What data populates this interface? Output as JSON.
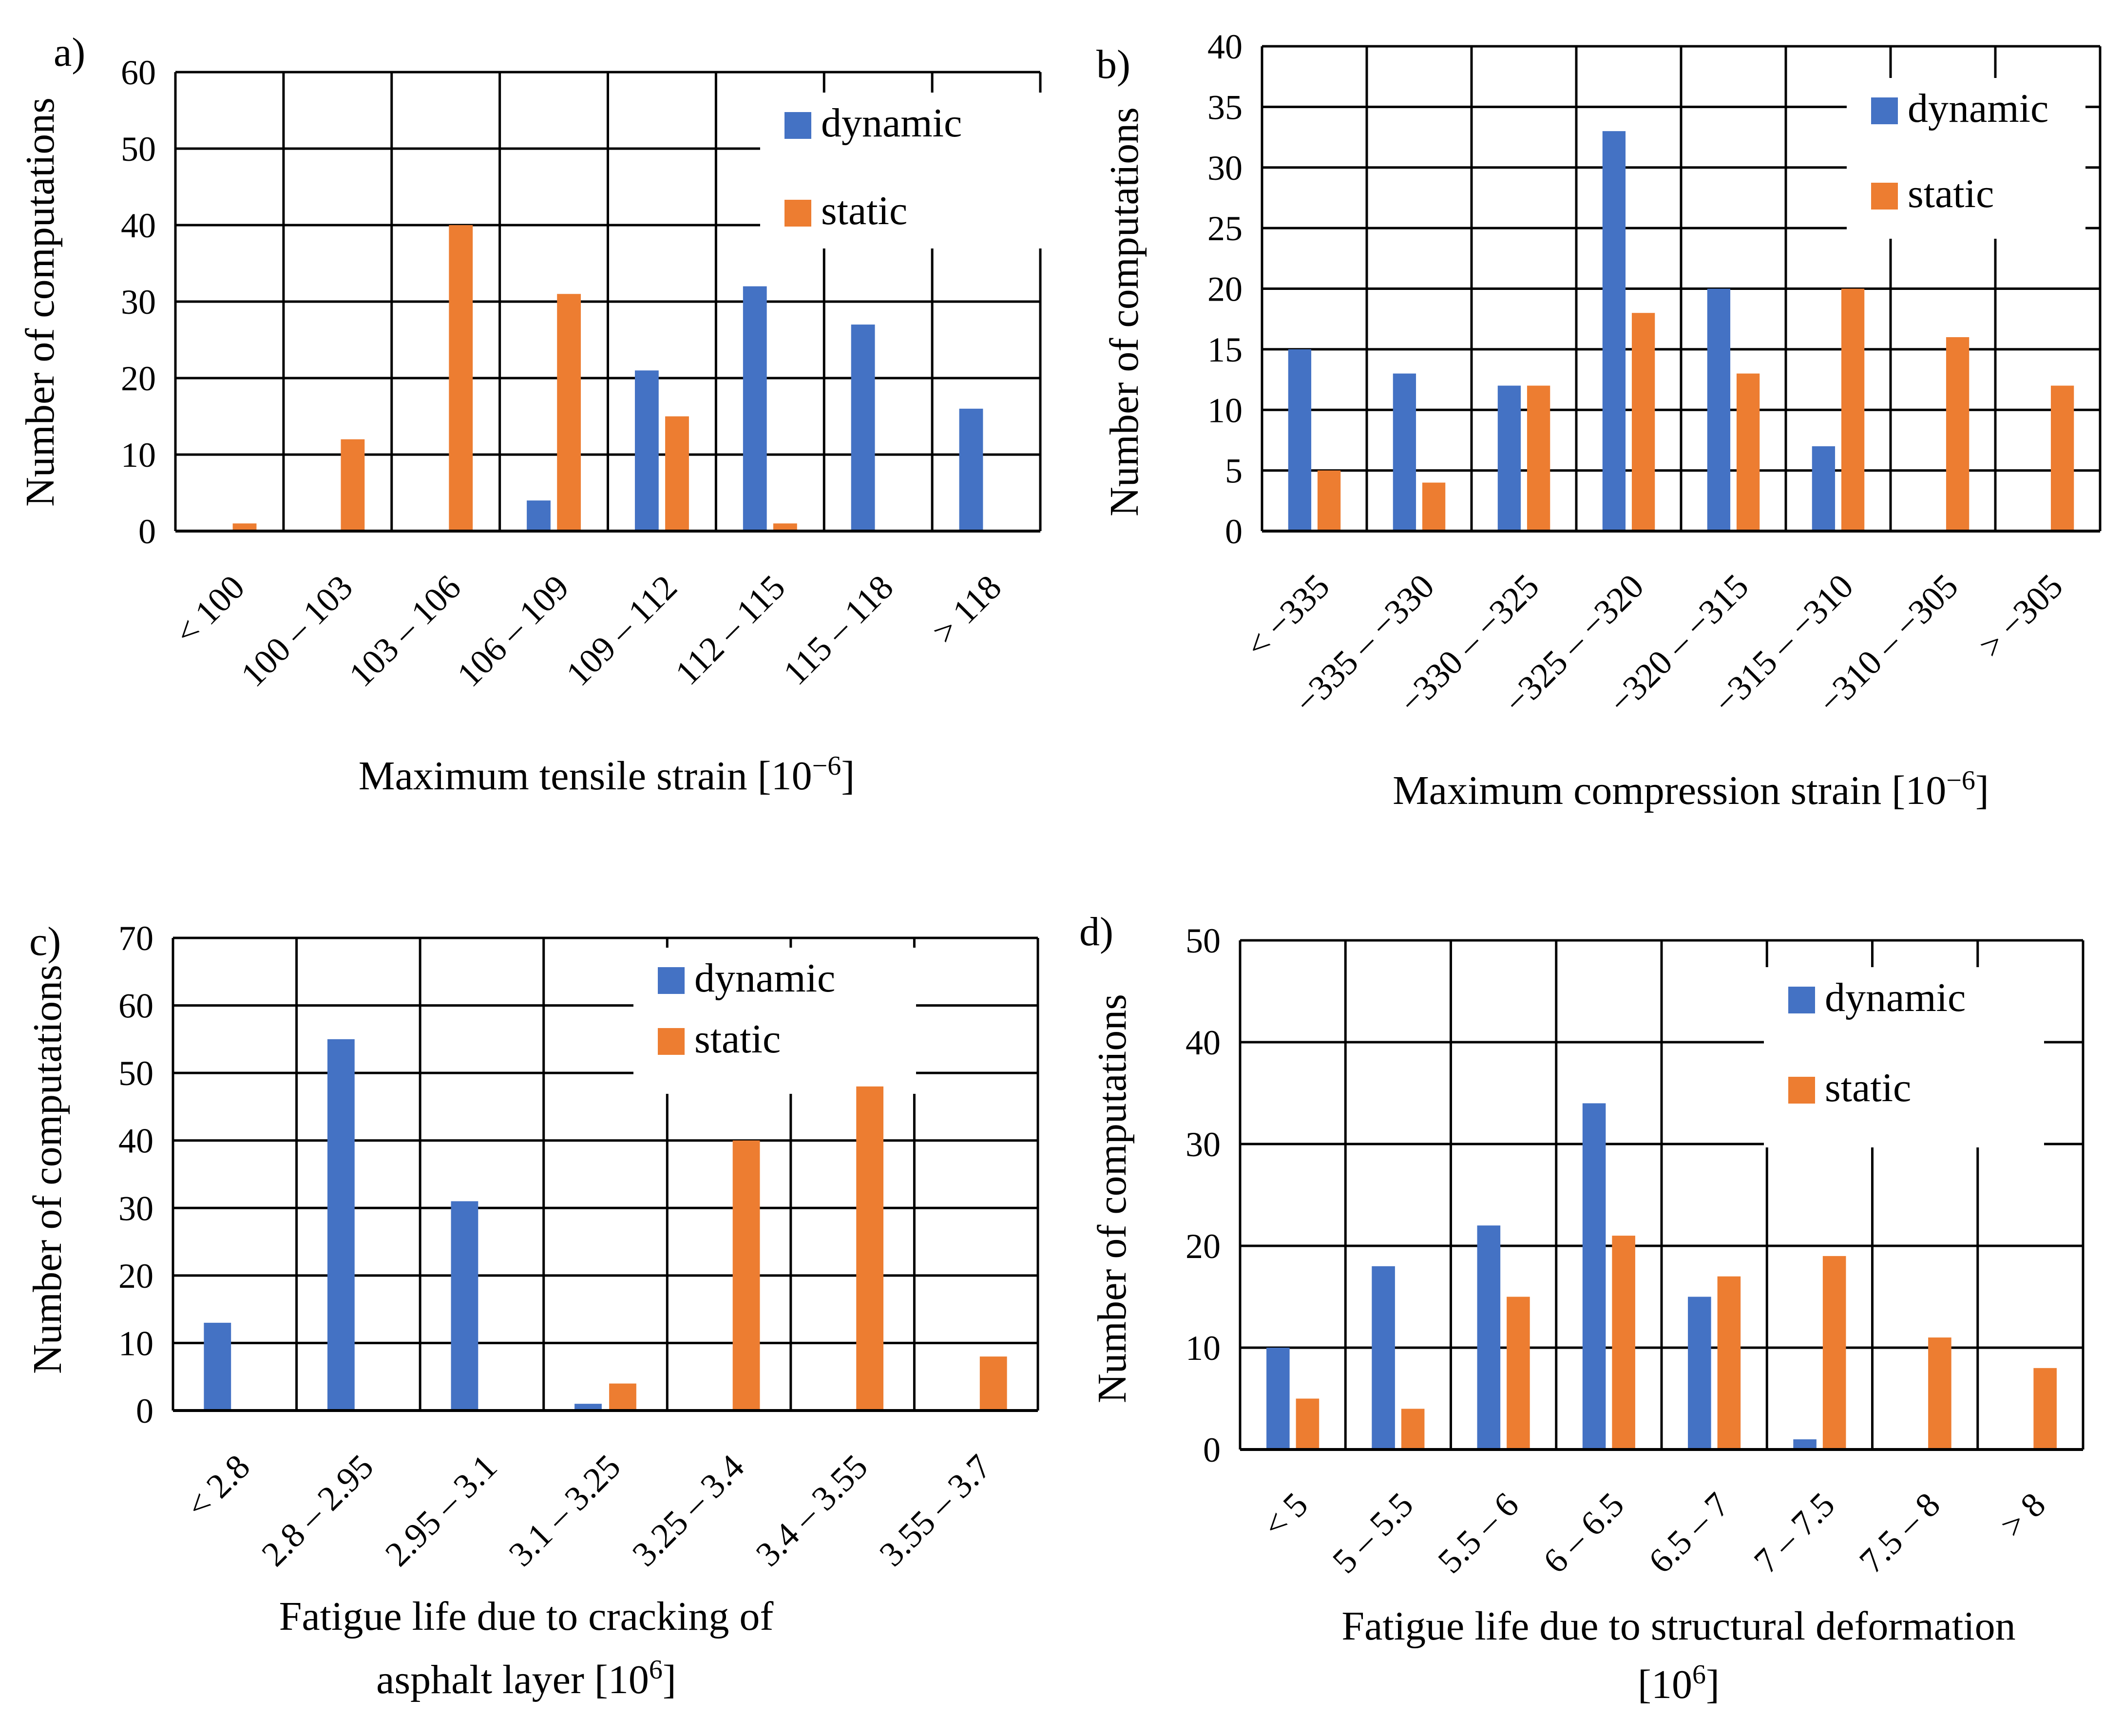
{
  "colors": {
    "dynamic": "#4472C4",
    "static": "#ED7D31",
    "grid": "#000000",
    "background": "#FFFFFF"
  },
  "chart_data": [
    {
      "type": "bar",
      "panel_label": "a)",
      "title": "",
      "xlabel": [
        "Maximum tensile strain [10−6]"
      ],
      "ylabel": "Number of computations",
      "ylim": [
        0,
        60
      ],
      "yticks": [
        "0",
        "10",
        "20",
        "30",
        "40",
        "50",
        "60"
      ],
      "categories": [
        "< 100",
        "100 – 103",
        "103 – 106",
        "106 – 109",
        "109 – 112",
        "112 – 115",
        "115 – 118",
        "> 118"
      ],
      "series": [
        {
          "name": "dynamic",
          "values": [
            0,
            0,
            0,
            4,
            21,
            32,
            27,
            16
          ]
        },
        {
          "name": "static",
          "values": [
            1,
            12,
            40,
            31,
            15,
            1,
            0,
            0
          ]
        }
      ],
      "legend": "top-right"
    },
    {
      "type": "bar",
      "panel_label": "b)",
      "title": "",
      "xlabel": [
        "Maximum compression strain [10−6]"
      ],
      "ylabel": "Number of computations",
      "ylim": [
        0,
        40
      ],
      "yticks": [
        "0",
        "5",
        "10",
        "15",
        "20",
        "25",
        "30",
        "35",
        "40"
      ],
      "categories": [
        "< −335",
        "−335 – −330",
        "−330 – −325",
        "−325 – −320",
        "−320 – −315",
        "−315 – −310",
        "−310 – −305",
        "> −305"
      ],
      "series": [
        {
          "name": "dynamic",
          "values": [
            15,
            13,
            12,
            33,
            20,
            7,
            0,
            0
          ]
        },
        {
          "name": "static",
          "values": [
            5,
            4,
            12,
            18,
            13,
            20,
            16,
            12
          ]
        }
      ],
      "legend": "top-right"
    },
    {
      "type": "bar",
      "panel_label": "c)",
      "title": "",
      "xlabel": [
        "Fatigue life due to cracking of",
        "asphalt layer [106]"
      ],
      "ylabel": "Number of computations",
      "ylim": [
        0,
        70
      ],
      "yticks": [
        "0",
        "10",
        "20",
        "30",
        "40",
        "50",
        "60",
        "70"
      ],
      "categories": [
        "< 2.8",
        "2.8 – 2.95",
        "2.95 – 3.1",
        "3.1 – 3.25",
        "3.25 – 3.4",
        "3.4 – 3.55",
        "3.55 – 3.7"
      ],
      "series": [
        {
          "name": "dynamic",
          "values": [
            13,
            55,
            31,
            1,
            0,
            0,
            0
          ]
        },
        {
          "name": "static",
          "values": [
            0,
            0,
            0,
            4,
            40,
            48,
            8
          ]
        }
      ],
      "legend": "top-right"
    },
    {
      "type": "bar",
      "panel_label": "d)",
      "title": "",
      "xlabel": [
        "Fatigue life due to structural deformation",
        "[106]"
      ],
      "ylabel": "Number of computations",
      "ylim": [
        0,
        50
      ],
      "yticks": [
        "0",
        "10",
        "20",
        "30",
        "40",
        "50"
      ],
      "categories": [
        "< 5",
        "5 – 5.5",
        "5.5 – 6",
        "6 – 6.5",
        "6.5 – 7",
        "7 – 7.5",
        "7.5 – 8",
        "> 8"
      ],
      "series": [
        {
          "name": "dynamic",
          "values": [
            10,
            18,
            22,
            34,
            15,
            1,
            0,
            0
          ]
        },
        {
          "name": "static",
          "values": [
            5,
            4,
            15,
            21,
            17,
            19,
            11,
            8
          ]
        }
      ],
      "legend": "top-right"
    }
  ]
}
